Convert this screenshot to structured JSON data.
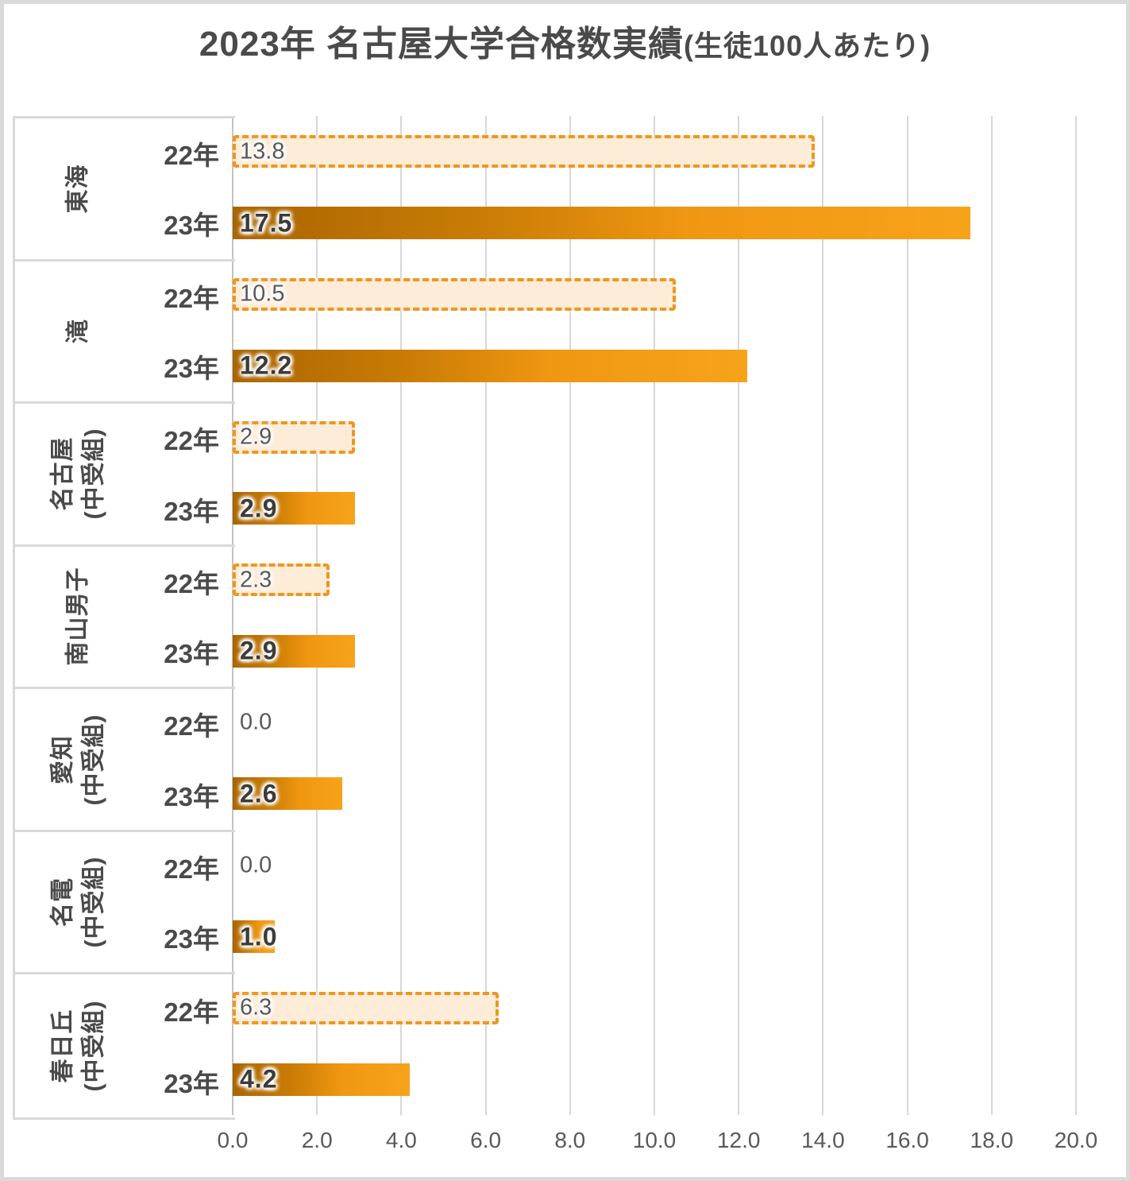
{
  "title": {
    "main": "2023年 名古屋大学合格数実績",
    "suffix": "(生徒100人あたり)"
  },
  "chart_data": {
    "type": "bar",
    "orientation": "horizontal",
    "title": "2023年 名古屋大学合格数実績(生徒100人あたり)",
    "categories": [
      "東海",
      "滝",
      "名古屋\n(中受組)",
      "南山男子",
      "愛知\n(中受組)",
      "名電\n(中受組)",
      "春日丘\n(中受組)"
    ],
    "series": [
      {
        "name": "22年",
        "style": "dashed-light",
        "values": [
          13.8,
          10.5,
          2.9,
          2.3,
          0.0,
          0.0,
          6.3
        ]
      },
      {
        "name": "23年",
        "style": "solid-gradient",
        "values": [
          17.5,
          12.2,
          2.9,
          2.9,
          2.6,
          1.0,
          4.2
        ]
      }
    ],
    "xlim": [
      0,
      20
    ],
    "x_tick_labels": [
      "0.0",
      "2.0",
      "4.0",
      "6.0",
      "8.0",
      "10.0",
      "12.0",
      "14.0",
      "16.0",
      "18.0",
      "20.0"
    ],
    "grid": "vertical",
    "legend": "none",
    "value_label_decimals": 1,
    "colors": {
      "bar22_fill": "#fcecd8",
      "bar22_border": "#f0961e",
      "bar23_gradient_start": "#aa6501",
      "bar23_gradient_end": "#f7a31a",
      "value_label_22": "#595959",
      "value_label_23": "#3b3b3b",
      "grid_line": "#d7d7d7",
      "axis_line": "#c2c2c2",
      "text": "#4a4a4a"
    }
  }
}
